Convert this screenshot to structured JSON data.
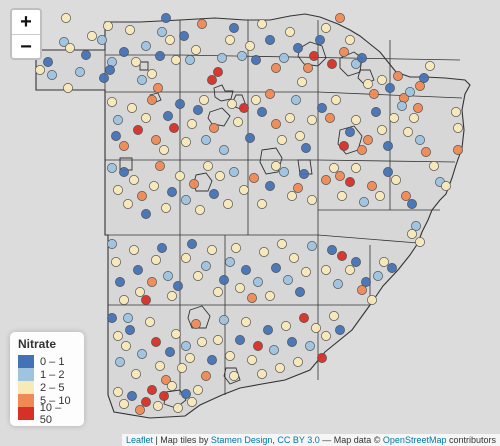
{
  "zoom": {
    "in_label": "+",
    "out_label": "−"
  },
  "legend": {
    "title": "Nitrate",
    "items": [
      {
        "label": "0 – 1",
        "color": "#4472b6"
      },
      {
        "label": "1 – 2",
        "color": "#9ec4e0"
      },
      {
        "label": "2 – 5",
        "color": "#f8e9b8"
      },
      {
        "label": "5 – 10",
        "color": "#f08a54"
      },
      {
        "label": "10 – 50",
        "color": "#d73027"
      }
    ]
  },
  "attribution": {
    "leaflet": "Leaflet",
    "sep1": " | Map tiles by ",
    "stamen": "Stamen Design",
    "sep2": ", ",
    "license": "CC BY 3.0",
    "sep3": " — Map data © ",
    "osm": "OpenStreetMap",
    "tail": " contributors"
  },
  "map_style": {
    "land": "#d7d7d7",
    "border": "#333333"
  }
}
